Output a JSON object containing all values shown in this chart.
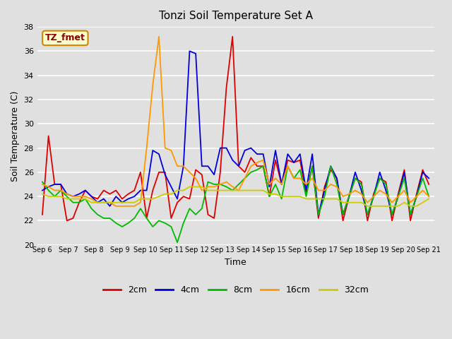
{
  "title": "Tonzi Soil Temperature Set A",
  "xlabel": "Time",
  "ylabel": "Soil Temperature (C)",
  "annotation": "TZ_fmet",
  "ylim": [
    20,
    38
  ],
  "colors": {
    "2cm": "#dd0000",
    "4cm": "#0000dd",
    "8cm": "#00bb00",
    "16cm": "#ff9900",
    "32cm": "#cccc00"
  },
  "x_labels": [
    "Sep 6",
    "Sep 7",
    "Sep 8",
    "Sep 9",
    "Sep 10",
    "Sep 11",
    "Sep 12",
    "Sep 13",
    "Sep 14",
    "Sep 15",
    "Sep 16",
    "Sep 17",
    "Sep 18",
    "Sep 19",
    "Sep 20",
    "Sep 21"
  ],
  "legend_labels": [
    "2cm",
    "4cm",
    "8cm",
    "16cm",
    "32cm"
  ],
  "series_2cm": [
    22.5,
    29.0,
    25.0,
    25.0,
    22.0,
    22.2,
    23.5,
    24.5,
    24.0,
    23.8,
    24.5,
    24.2,
    24.5,
    23.8,
    24.2,
    24.5,
    26.0,
    22.2,
    24.5,
    26.0,
    26.0,
    22.2,
    23.5,
    24.0,
    23.8,
    26.2,
    25.8,
    22.5,
    22.2,
    26.0,
    33.0,
    37.2,
    26.5,
    26.0,
    27.2,
    26.5,
    26.5,
    24.0,
    27.0,
    25.0,
    27.0,
    26.8,
    27.0,
    24.2,
    26.5,
    22.2,
    24.8,
    26.2,
    25.5,
    22.0,
    24.0,
    25.5,
    25.2,
    22.0,
    24.2,
    25.5,
    25.2,
    22.0,
    24.2,
    26.2,
    22.0,
    24.2,
    26.2,
    25.0
  ],
  "series_4cm": [
    24.5,
    24.8,
    25.0,
    25.0,
    24.2,
    24.0,
    24.2,
    24.5,
    24.0,
    23.5,
    23.8,
    23.2,
    24.0,
    23.5,
    23.8,
    24.0,
    24.5,
    24.5,
    27.8,
    27.5,
    25.8,
    24.8,
    23.8,
    26.5,
    36.0,
    35.8,
    26.5,
    26.5,
    25.8,
    28.0,
    28.0,
    27.0,
    26.5,
    27.8,
    28.0,
    27.5,
    27.5,
    24.8,
    27.8,
    25.0,
    27.5,
    26.8,
    27.5,
    24.5,
    27.5,
    22.5,
    24.5,
    26.5,
    25.5,
    22.5,
    24.0,
    26.0,
    24.5,
    22.5,
    24.0,
    26.0,
    24.5,
    22.5,
    24.0,
    26.0,
    22.5,
    24.0,
    26.0,
    25.5
  ],
  "series_8cm": [
    25.2,
    24.5,
    24.0,
    24.5,
    24.0,
    23.5,
    23.5,
    23.8,
    23.0,
    22.5,
    22.2,
    22.2,
    21.8,
    21.5,
    21.8,
    22.2,
    23.0,
    22.2,
    21.5,
    22.0,
    21.8,
    21.5,
    20.2,
    21.8,
    23.0,
    22.5,
    23.0,
    25.2,
    25.0,
    25.0,
    24.8,
    24.5,
    25.0,
    25.5,
    26.0,
    26.2,
    26.5,
    24.0,
    25.0,
    23.8,
    26.5,
    25.5,
    26.2,
    24.0,
    26.5,
    22.5,
    24.0,
    26.5,
    25.0,
    22.5,
    24.0,
    25.5,
    25.0,
    22.5,
    24.0,
    25.5,
    25.0,
    22.5,
    24.0,
    25.5,
    22.5,
    24.0,
    25.5,
    24.0
  ],
  "series_16cm": [
    25.0,
    24.8,
    24.5,
    24.5,
    24.2,
    24.0,
    24.0,
    24.0,
    23.8,
    23.5,
    23.5,
    23.5,
    23.2,
    23.2,
    23.2,
    23.2,
    23.5,
    28.0,
    33.2,
    37.2,
    28.0,
    27.8,
    26.5,
    26.5,
    26.0,
    25.5,
    24.5,
    24.8,
    24.8,
    25.0,
    25.2,
    24.8,
    24.5,
    25.5,
    26.5,
    26.8,
    27.0,
    25.0,
    25.5,
    25.0,
    26.5,
    25.5,
    25.5,
    25.0,
    25.5,
    24.5,
    24.5,
    25.0,
    24.8,
    24.0,
    24.2,
    24.5,
    24.2,
    23.5,
    24.0,
    24.5,
    24.2,
    23.5,
    24.0,
    24.5,
    23.5,
    24.0,
    24.5,
    24.0
  ],
  "series_32cm": [
    24.2,
    24.0,
    24.0,
    24.0,
    23.8,
    23.8,
    23.8,
    23.8,
    23.5,
    23.5,
    23.5,
    23.5,
    23.5,
    23.5,
    23.5,
    23.5,
    23.8,
    23.8,
    23.8,
    24.0,
    24.2,
    24.2,
    24.5,
    24.5,
    24.8,
    24.8,
    24.8,
    24.5,
    24.5,
    24.5,
    24.5,
    24.5,
    24.5,
    24.5,
    24.5,
    24.5,
    24.5,
    24.2,
    24.2,
    24.0,
    24.0,
    24.0,
    24.0,
    23.8,
    23.8,
    23.8,
    23.8,
    23.8,
    23.8,
    23.5,
    23.5,
    23.5,
    23.5,
    23.2,
    23.2,
    23.2,
    23.2,
    23.2,
    23.2,
    23.5,
    23.2,
    23.2,
    23.5,
    23.8
  ]
}
